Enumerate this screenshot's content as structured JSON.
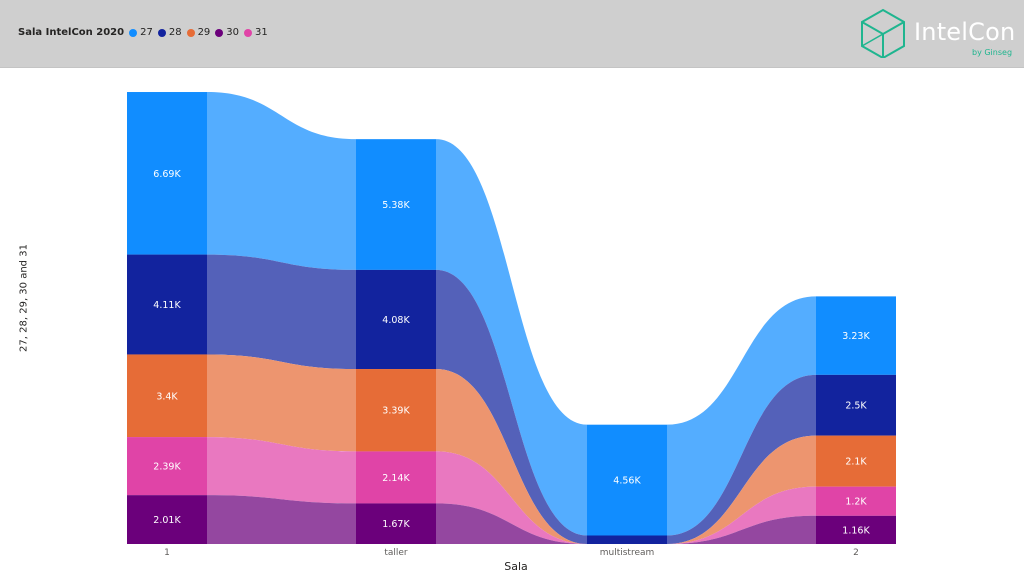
{
  "header": {
    "legend_title": "Sala IntelCon 2020",
    "legend": [
      {
        "label": "27",
        "color": "#118DFF"
      },
      {
        "label": "28",
        "color": "#12239E"
      },
      {
        "label": "29",
        "color": "#E66C37"
      },
      {
        "label": "30",
        "color": "#6B007B"
      },
      {
        "label": "31",
        "color": "#E044A7"
      }
    ],
    "logo_text": "IntelCon",
    "logo_sub": "by Ginseg"
  },
  "chart_data": {
    "type": "bar",
    "variant": "ribbon",
    "xlabel": "Sala",
    "ylabel": "27, 28, 29, 30 and 31",
    "categories": [
      "1",
      "taller",
      "multistream",
      "2"
    ],
    "series": [
      {
        "name": "27",
        "color": "#118DFF",
        "values": [
          6690,
          5380,
          4560,
          3230
        ],
        "labels": [
          "6.69K",
          "5.38K",
          "4.56K",
          "3.23K"
        ]
      },
      {
        "name": "28",
        "color": "#12239E",
        "values": [
          4110,
          4080,
          350,
          2500
        ],
        "labels": [
          "4.11K",
          "4.08K",
          "",
          "2.5K"
        ]
      },
      {
        "name": "29",
        "color": "#E66C37",
        "values": [
          3400,
          3390,
          0,
          2100
        ],
        "labels": [
          "3.4K",
          "3.39K",
          "",
          "2.1K"
        ]
      },
      {
        "name": "31",
        "color": "#E044A7",
        "values": [
          2390,
          2140,
          0,
          1200
        ],
        "labels": [
          "2.39K",
          "2.14K",
          "",
          "1.2K"
        ]
      },
      {
        "name": "30",
        "color": "#6B007B",
        "values": [
          2010,
          1670,
          0,
          1160
        ],
        "labels": [
          "2.01K",
          "1.67K",
          "",
          "1.16K"
        ]
      }
    ]
  }
}
